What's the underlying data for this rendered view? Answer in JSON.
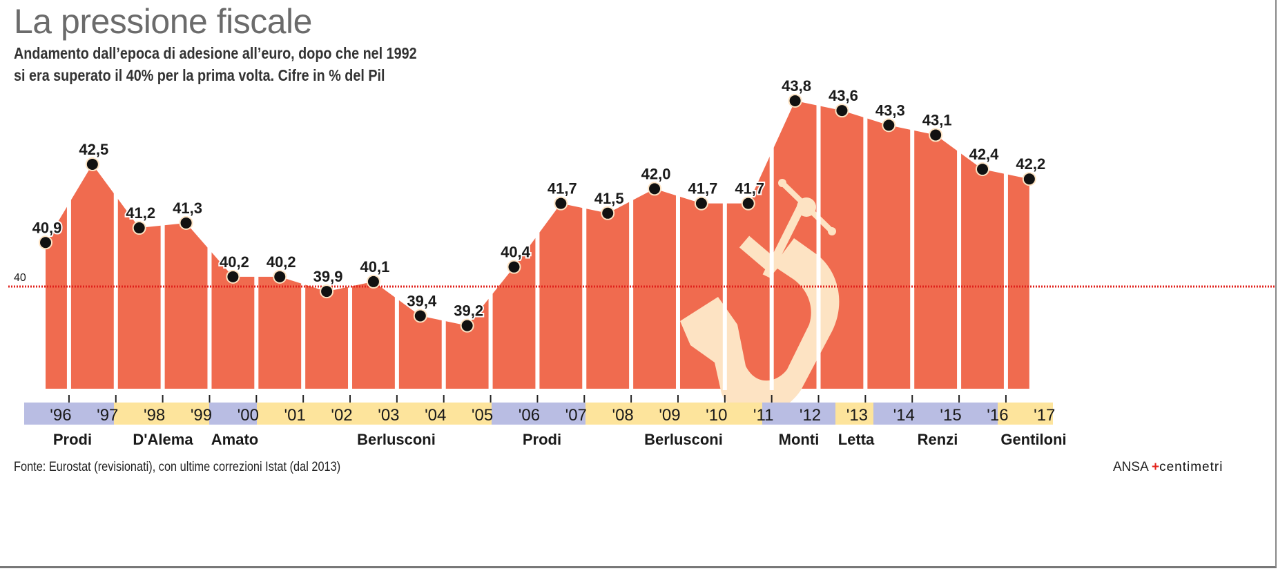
{
  "title": "La pressione fiscale",
  "subtitle_line1": "Andamento dall’epoca di adesione all’euro, dopo che nel 1992",
  "subtitle_line2": "si era superato il 40% per la prima volta. Cifre in % del Pil",
  "source": "Fonte: Eurostat (revisionati), con ultime correzioni Istat (dal 2013)",
  "credit": {
    "agency": "ANSA",
    "brand": "centimetri"
  },
  "colors": {
    "area": "#f06b4f",
    "reference_line": "#e0201b",
    "band_blue": "#b9bde3",
    "band_yellow": "#fde49c",
    "clamp": "#fde3c3"
  },
  "chart_data": {
    "type": "area",
    "title": "La pressione fiscale",
    "ylabel": "% del Pil",
    "ylim": [
      37.9,
      44.3
    ],
    "reference_line": {
      "value": 40,
      "label": "40"
    },
    "categories": [
      "'96",
      "'97",
      "'98",
      "'99",
      "'00",
      "'01",
      "'02",
      "'03",
      "'04",
      "'05",
      "'06",
      "'07",
      "'08",
      "'09",
      "'10",
      "'11",
      "'12",
      "'13",
      "'14",
      "'15",
      "'16",
      "'17"
    ],
    "values": [
      40.9,
      42.5,
      41.2,
      41.3,
      40.2,
      40.2,
      39.9,
      40.1,
      39.4,
      39.2,
      40.4,
      41.7,
      41.5,
      42.0,
      41.7,
      41.7,
      43.8,
      43.6,
      43.3,
      43.1,
      42.4,
      42.2
    ],
    "value_labels": [
      "40,9",
      "42,5",
      "41,2",
      "41,3",
      "40,2",
      "40,2",
      "39,9",
      "40,1",
      "39,4",
      "39,2",
      "40,4",
      "41,7",
      "41,5",
      "42,0",
      "41,7",
      "41,7",
      "43,8",
      "43,6",
      "43,3",
      "43,1",
      "42,4",
      "42,2"
    ],
    "governments": [
      {
        "name": "Prodi",
        "band": "blue"
      },
      {
        "name": "D'Alema",
        "band": "yellow"
      },
      {
        "name": "Amato",
        "band": "blue"
      },
      {
        "name": "Berlusconi",
        "band": "yellow"
      },
      {
        "name": "Prodi",
        "band": "blue"
      },
      {
        "name": "Berlusconi",
        "band": "yellow"
      },
      {
        "name": "Monti",
        "band": "blue"
      },
      {
        "name": "Letta",
        "band": "yellow"
      },
      {
        "name": "Renzi",
        "band": "blue"
      },
      {
        "name": "Gentiloni",
        "band": "yellow"
      }
    ]
  }
}
